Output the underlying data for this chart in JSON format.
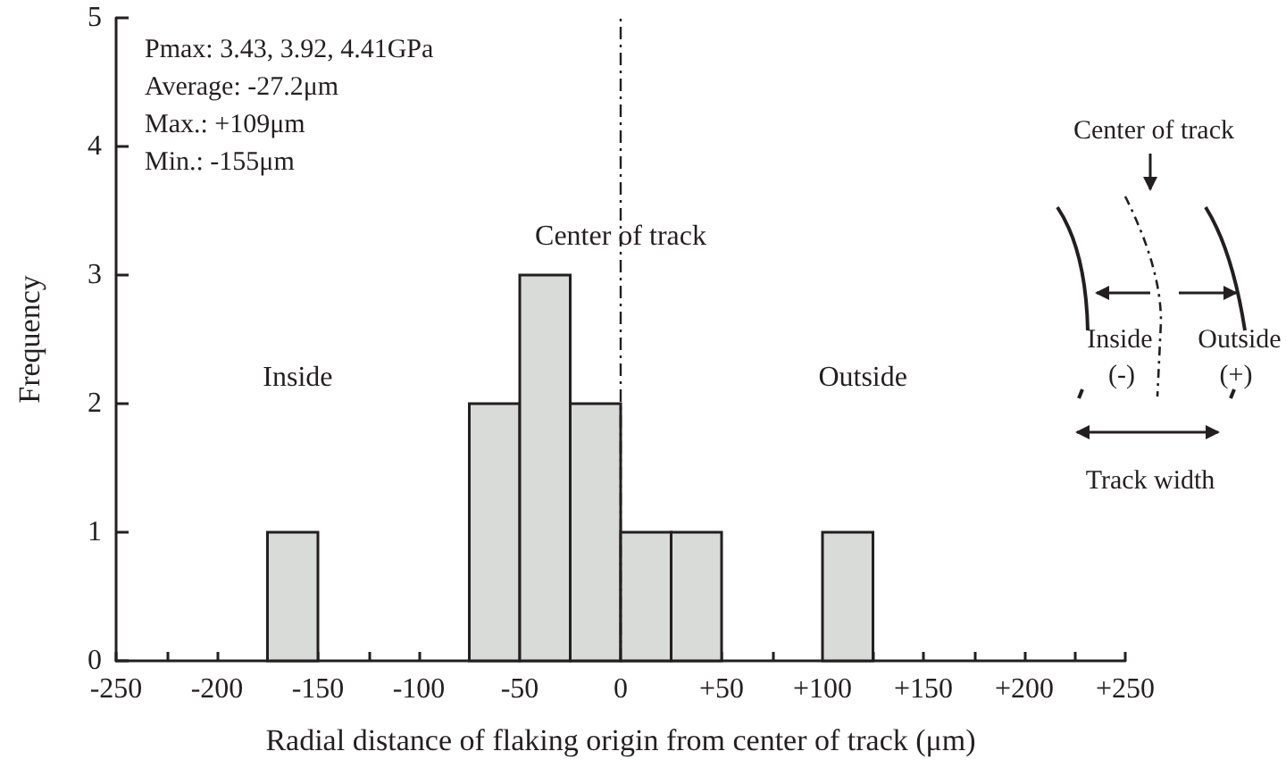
{
  "chart_data": {
    "type": "histogram",
    "xlabel": "Radial distance of flaking origin from center of track (μm)",
    "ylabel": "Frequency",
    "bins": [
      -250,
      -225,
      -200,
      -175,
      -150,
      -125,
      -100,
      -75,
      -50,
      -25,
      0,
      25,
      50,
      75,
      100,
      125,
      150,
      175,
      200,
      225,
      250
    ],
    "values": [
      0,
      0,
      0,
      1,
      0,
      0,
      0,
      2,
      3,
      2,
      1,
      1,
      0,
      0,
      1,
      0,
      0,
      0,
      0,
      0
    ],
    "color": "#d9dbd9",
    "xlim": [
      -250,
      250
    ],
    "xticks": [
      -250,
      {
        "value": -225,
        "label": null
      },
      -200,
      {
        "value": -175,
        "label": null
      },
      -150,
      {
        "value": -125,
        "label": null
      },
      -100,
      {
        "value": -75,
        "label": null
      },
      -50,
      {
        "value": -25,
        "label": null
      },
      0,
      {
        "value": 25,
        "label": null
      },
      {
        "value": 50,
        "label": "+50"
      },
      {
        "value": 75,
        "label": null
      },
      {
        "value": 100,
        "label": "+100"
      },
      {
        "value": 125,
        "label": null
      },
      {
        "value": 150,
        "label": "+150"
      },
      {
        "value": 175,
        "label": null
      },
      {
        "value": 200,
        "label": "+200"
      },
      {
        "value": 225,
        "label": null
      },
      {
        "value": 250,
        "label": "+250"
      }
    ],
    "ylim": [
      0,
      5
    ],
    "yticks": [
      0,
      1,
      2,
      3,
      4,
      5
    ],
    "grid": false,
    "ref_lines": [
      {
        "axis": "x",
        "value": 0,
        "line_style": "dashed"
      }
    ],
    "annotations": [
      "Pmax: 3.43, 3.92, 4.41GPa",
      "Average: -27.2μm",
      "Max.: +109μm",
      "Min.: -155μm",
      {
        "text": "Center of track",
        "x": 0,
        "y": 3.3
      },
      "Inside",
      "Outside",
      "Center of track",
      "Inside",
      "(-)",
      "Outside",
      "(+)",
      "Track width"
    ]
  }
}
